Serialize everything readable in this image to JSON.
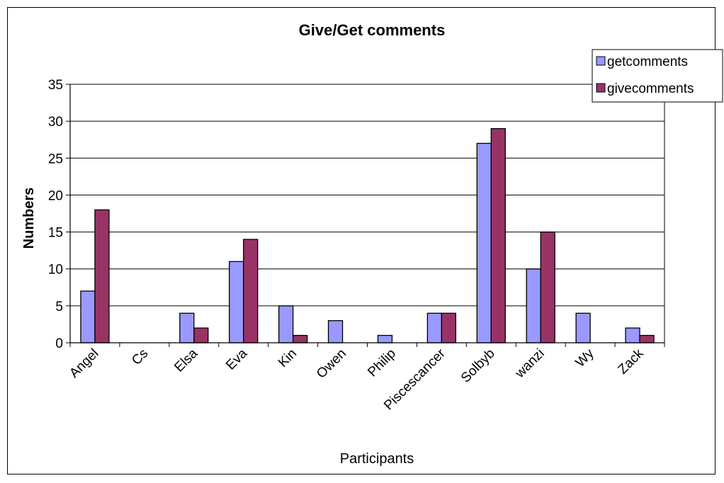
{
  "chart_data": {
    "type": "bar",
    "title": "Give/Get comments",
    "xlabel": "Participants",
    "ylabel": "Numbers",
    "ylim": [
      0,
      35
    ],
    "yticks": [
      "0",
      "5",
      "10",
      "15",
      "20",
      "25",
      "30",
      "35"
    ],
    "grid": "horizontal",
    "legend_position": "top-right",
    "categories": [
      "Angel",
      "Cs",
      "Elsa",
      "Eva",
      "Kin",
      "Owen",
      "Philip",
      "Piscescancer",
      "Solbyb",
      "wanzi",
      "Wy",
      "Zack"
    ],
    "series": [
      {
        "name": "getcomments",
        "color": "#9999ff",
        "values": [
          7,
          0,
          4,
          11,
          5,
          3,
          1,
          4,
          27,
          10,
          4,
          2
        ]
      },
      {
        "name": "givecomments",
        "color": "#993366",
        "values": [
          18,
          0,
          2,
          14,
          1,
          0,
          0,
          4,
          29,
          15,
          0,
          1
        ]
      }
    ]
  }
}
